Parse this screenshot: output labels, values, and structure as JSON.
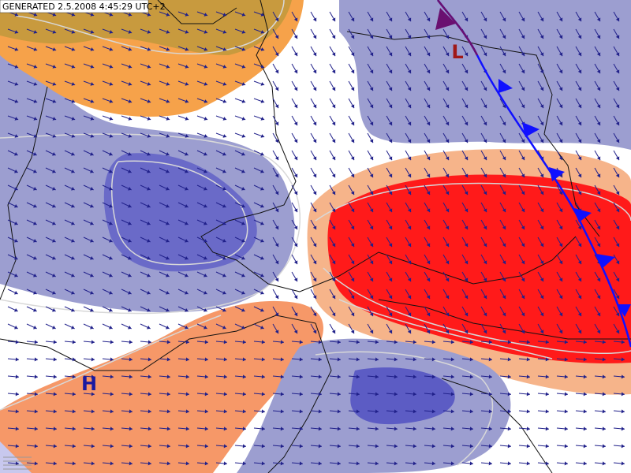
{
  "header": {
    "generated": "GENERATED 2.5.2008 4:45:29 UTC+2"
  },
  "pressure_centers": [
    {
      "label": "L"
    },
    {
      "label": "H"
    }
  ]
}
